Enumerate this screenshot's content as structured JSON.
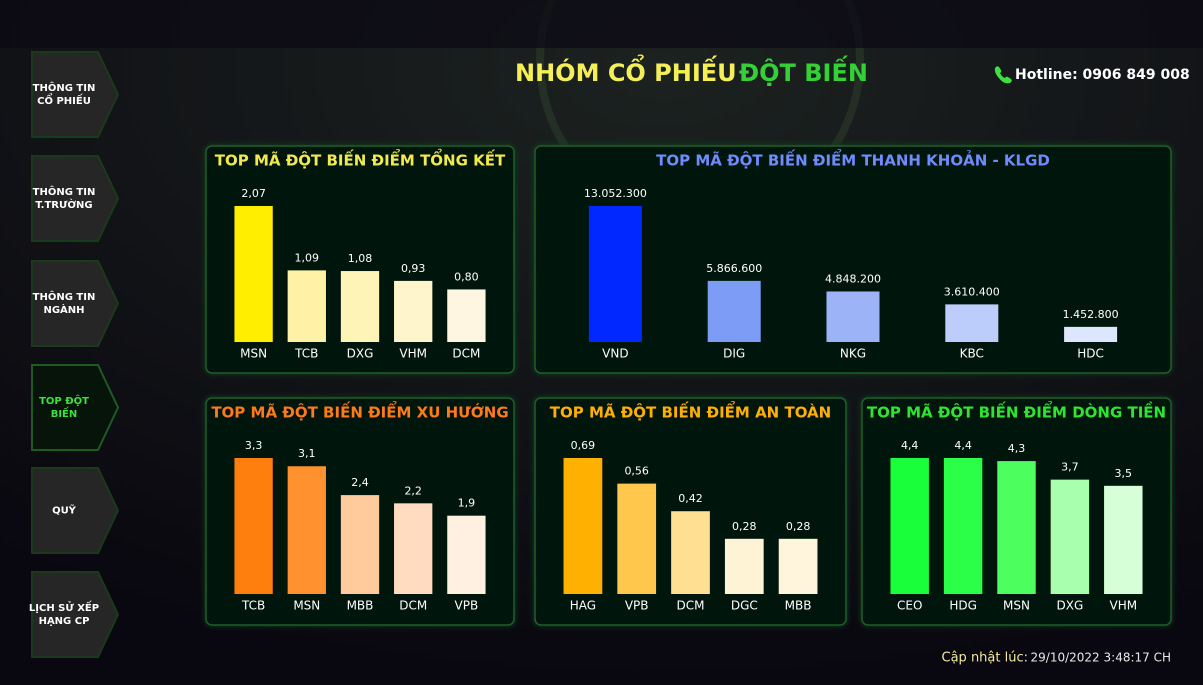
{
  "header": {
    "title_part1": "NHÓM CỔ PHIẾU",
    "title_part2": "ĐỘT BIẾN",
    "hotline": "Hotline: 0906 849 008"
  },
  "nav": {
    "items": [
      [
        "THÔNG TIN",
        "CỔ PHIẾU"
      ],
      [
        "THÔNG TIN",
        "T.TRƯỜNG"
      ],
      [
        "THÔNG TIN",
        "NGÀNH"
      ],
      [
        "TOP ĐỘT",
        "BIẾN"
      ],
      [
        "QUỸ"
      ],
      [
        "LỊCH SỬ XẾP",
        "HẠNG CP"
      ]
    ],
    "active": 3
  },
  "chart_data": [
    {
      "type": "bar",
      "title": "TOP MÃ ĐỘT BIẾN ĐIỂM TỔNG KẾT",
      "title_color": "#f2e94e",
      "categories": [
        "MSN",
        "TCB",
        "DXG",
        "VHM",
        "DCM"
      ],
      "values": [
        2.07,
        1.09,
        1.08,
        0.93,
        0.8
      ],
      "value_labels": [
        "2,07",
        "1,09",
        "1,08",
        "0,93",
        "0,80"
      ],
      "colors": [
        "#ffee00",
        "#fff2a6",
        "#fff4b8",
        "#fff5cc",
        "#fff6e2"
      ]
    },
    {
      "type": "bar",
      "title": "TOP MÃ ĐỘT BIẾN ĐIỂM THANH KHOẢN - KLGD",
      "title_color": "#6f8cff",
      "categories": [
        "VND",
        "DIG",
        "NKG",
        "KBC",
        "HDC"
      ],
      "values": [
        13052300,
        5866600,
        4848200,
        3610400,
        1452800
      ],
      "value_labels": [
        "13.052.300",
        "5.866.600",
        "4.848.200",
        "3.610.400",
        "1.452.800"
      ],
      "colors": [
        "#0028ff",
        "#7c9cf5",
        "#9db3f8",
        "#bccdfb",
        "#dde7fc"
      ]
    },
    {
      "type": "bar",
      "title": "TOP MÃ ĐỘT BIẾN ĐIỂM XU HƯỚNG",
      "title_color": "#ff7a1a",
      "categories": [
        "TCB",
        "MSN",
        "MBB",
        "DCM",
        "VPB"
      ],
      "values": [
        3.3,
        3.1,
        2.4,
        2.2,
        1.9
      ],
      "value_labels": [
        "3,3",
        "3,1",
        "2,4",
        "2,2",
        "1,9"
      ],
      "colors": [
        "#ff7f0e",
        "#ff922e",
        "#ffca9c",
        "#ffdcbf",
        "#fff0e1"
      ]
    },
    {
      "type": "bar",
      "title": "TOP MÃ ĐỘT BIẾN ĐIỂM AN TOÀN",
      "title_color": "#ffb000",
      "categories": [
        "HAG",
        "VPB",
        "DCM",
        "DGC",
        "MBB"
      ],
      "values": [
        0.69,
        0.56,
        0.42,
        0.28,
        0.28
      ],
      "value_labels": [
        "0,69",
        "0,56",
        "0,42",
        "0,28",
        "0,28"
      ],
      "colors": [
        "#ffb000",
        "#ffc84c",
        "#ffdf92",
        "#fff3d6",
        "#fff5dc"
      ]
    },
    {
      "type": "bar",
      "title": "TOP MÃ ĐỘT BIẾN ĐIỂM DÒNG TIỀN",
      "title_color": "#2fe62f",
      "categories": [
        "CEO",
        "HDG",
        "MSN",
        "DXG",
        "VHM"
      ],
      "values": [
        4.4,
        4.4,
        4.3,
        3.7,
        3.5
      ],
      "value_labels": [
        "4,4",
        "4,4",
        "4,3",
        "3,7",
        "3,5"
      ],
      "colors": [
        "#19ff3a",
        "#2bff48",
        "#4cff5e",
        "#a8ffad",
        "#d6ffd8"
      ]
    }
  ],
  "footer": {
    "label": "Cập nhật lúc:",
    "timestamp": "29/10/2022 3:48:17 CH"
  }
}
